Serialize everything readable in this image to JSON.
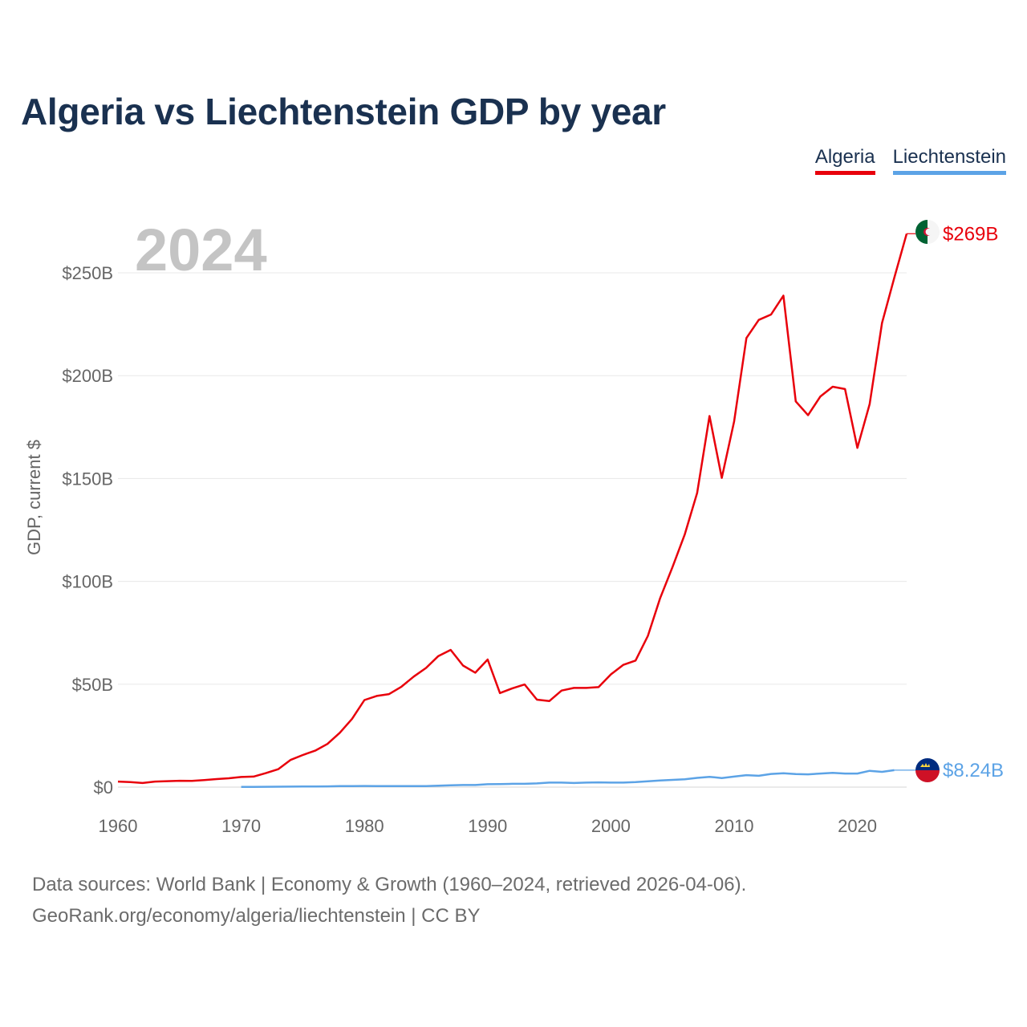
{
  "title": "Algeria vs Liechtenstein GDP by year",
  "legend": {
    "algeria": "Algeria",
    "liechtenstein": "Liechtenstein"
  },
  "footer": {
    "line1": "Data sources: World Bank | Economy & Growth (1960–2024, retrieved 2026-04-06).",
    "line2": "GeoRank.org/economy/algeria/liechtenstein | CC BY"
  },
  "chart_data": {
    "type": "line",
    "title": "Algeria vs Liechtenstein GDP by year",
    "year_watermark": "2024",
    "ylabel": "GDP, current $",
    "xlabel": "",
    "xlim": [
      1960,
      2024
    ],
    "ylim": [
      0,
      269
    ],
    "unit": "billion current US$",
    "x_ticks": [
      "1960",
      "1970",
      "1980",
      "1990",
      "2000",
      "2010",
      "2020"
    ],
    "y_ticks": [
      {
        "value": 0,
        "label": "$0"
      },
      {
        "value": 50,
        "label": "$50B"
      },
      {
        "value": 100,
        "label": "$100B"
      },
      {
        "value": 150,
        "label": "$150B"
      },
      {
        "value": 200,
        "label": "$200B"
      },
      {
        "value": 250,
        "label": "$250B"
      }
    ],
    "grid": true,
    "series": [
      {
        "name": "Algeria",
        "color": "#e8000b",
        "end_label": "$269B",
        "points": [
          [
            1960,
            2.7
          ],
          [
            1961,
            2.4
          ],
          [
            1962,
            2.0
          ],
          [
            1963,
            2.7
          ],
          [
            1964,
            2.9
          ],
          [
            1965,
            3.1
          ],
          [
            1966,
            3.0
          ],
          [
            1967,
            3.4
          ],
          [
            1968,
            3.9
          ],
          [
            1969,
            4.3
          ],
          [
            1970,
            4.9
          ],
          [
            1971,
            5.1
          ],
          [
            1972,
            6.8
          ],
          [
            1973,
            8.7
          ],
          [
            1974,
            13.2
          ],
          [
            1975,
            15.6
          ],
          [
            1976,
            17.7
          ],
          [
            1977,
            21.0
          ],
          [
            1978,
            26.4
          ],
          [
            1979,
            33.2
          ],
          [
            1980,
            42.3
          ],
          [
            1981,
            44.3
          ],
          [
            1982,
            45.2
          ],
          [
            1983,
            48.8
          ],
          [
            1984,
            53.7
          ],
          [
            1985,
            57.9
          ],
          [
            1986,
            63.7
          ],
          [
            1987,
            66.7
          ],
          [
            1988,
            59.1
          ],
          [
            1989,
            55.6
          ],
          [
            1990,
            62.0
          ],
          [
            1991,
            45.7
          ],
          [
            1992,
            48.0
          ],
          [
            1993,
            49.9
          ],
          [
            1994,
            42.5
          ],
          [
            1995,
            41.8
          ],
          [
            1996,
            46.9
          ],
          [
            1997,
            48.2
          ],
          [
            1998,
            48.2
          ],
          [
            1999,
            48.6
          ],
          [
            2000,
            54.8
          ],
          [
            2001,
            59.4
          ],
          [
            2002,
            61.5
          ],
          [
            2003,
            73.5
          ],
          [
            2004,
            91.9
          ],
          [
            2005,
            107.0
          ],
          [
            2006,
            122.9
          ],
          [
            2007,
            143.0
          ],
          [
            2008,
            180.4
          ],
          [
            2009,
            150.3
          ],
          [
            2010,
            177.8
          ],
          [
            2011,
            218.3
          ],
          [
            2012,
            227.1
          ],
          [
            2013,
            229.7
          ],
          [
            2014,
            238.9
          ],
          [
            2015,
            187.5
          ],
          [
            2016,
            180.8
          ],
          [
            2017,
            189.9
          ],
          [
            2018,
            194.6
          ],
          [
            2019,
            193.5
          ],
          [
            2020,
            164.9
          ],
          [
            2021,
            186.2
          ],
          [
            2022,
            225.6
          ],
          [
            2023,
            247.6
          ],
          [
            2024,
            269.0
          ]
        ]
      },
      {
        "name": "Liechtenstein",
        "color": "#5ca3e6",
        "end_label": "$8.24B",
        "points": [
          [
            1970,
            0.1
          ],
          [
            1971,
            0.12
          ],
          [
            1972,
            0.15
          ],
          [
            1973,
            0.2
          ],
          [
            1974,
            0.23
          ],
          [
            1975,
            0.3
          ],
          [
            1976,
            0.33
          ],
          [
            1977,
            0.35
          ],
          [
            1978,
            0.45
          ],
          [
            1979,
            0.5
          ],
          [
            1980,
            0.54
          ],
          [
            1981,
            0.52
          ],
          [
            1982,
            0.5
          ],
          [
            1983,
            0.5
          ],
          [
            1984,
            0.48
          ],
          [
            1985,
            0.5
          ],
          [
            1986,
            0.7
          ],
          [
            1987,
            0.9
          ],
          [
            1988,
            1.0
          ],
          [
            1989,
            1.0
          ],
          [
            1990,
            1.4
          ],
          [
            1991,
            1.5
          ],
          [
            1992,
            1.6
          ],
          [
            1993,
            1.6
          ],
          [
            1994,
            1.8
          ],
          [
            1995,
            2.2
          ],
          [
            1996,
            2.2
          ],
          [
            1997,
            2.0
          ],
          [
            1998,
            2.2
          ],
          [
            1999,
            2.3
          ],
          [
            2000,
            2.2
          ],
          [
            2001,
            2.2
          ],
          [
            2002,
            2.4
          ],
          [
            2003,
            2.8
          ],
          [
            2004,
            3.2
          ],
          [
            2005,
            3.5
          ],
          [
            2006,
            3.8
          ],
          [
            2007,
            4.5
          ],
          [
            2008,
            5.0
          ],
          [
            2009,
            4.4
          ],
          [
            2010,
            5.1
          ],
          [
            2011,
            5.8
          ],
          [
            2012,
            5.5
          ],
          [
            2013,
            6.4
          ],
          [
            2014,
            6.7
          ],
          [
            2015,
            6.3
          ],
          [
            2016,
            6.2
          ],
          [
            2017,
            6.6
          ],
          [
            2018,
            6.9
          ],
          [
            2019,
            6.6
          ],
          [
            2020,
            6.6
          ],
          [
            2021,
            7.9
          ],
          [
            2022,
            7.4
          ],
          [
            2023,
            8.24
          ]
        ]
      }
    ]
  }
}
